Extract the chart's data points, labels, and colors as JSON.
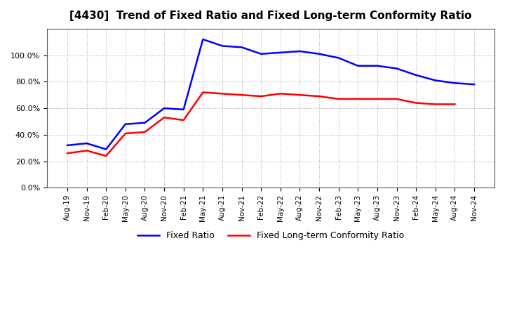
{
  "title": "[4430]  Trend of Fixed Ratio and Fixed Long-term Conformity Ratio",
  "x_labels": [
    "Aug-19",
    "Nov-19",
    "Feb-20",
    "May-20",
    "Aug-20",
    "Nov-20",
    "Feb-21",
    "May-21",
    "Aug-21",
    "Nov-21",
    "Feb-22",
    "May-22",
    "Aug-22",
    "Nov-22",
    "Feb-23",
    "May-23",
    "Aug-23",
    "Nov-23",
    "Feb-24",
    "May-24",
    "Aug-24",
    "Nov-24"
  ],
  "fixed_ratio": [
    0.32,
    0.335,
    0.29,
    0.48,
    0.49,
    0.6,
    0.59,
    1.12,
    1.07,
    1.06,
    1.01,
    1.02,
    1.03,
    1.01,
    0.98,
    0.92,
    0.92,
    0.9,
    0.85,
    0.81,
    0.79,
    0.78
  ],
  "fixed_lt_ratio": [
    0.26,
    0.28,
    0.24,
    0.41,
    0.42,
    0.53,
    0.51,
    0.72,
    0.71,
    0.7,
    0.69,
    0.71,
    0.7,
    0.69,
    0.67,
    0.67,
    0.67,
    0.67,
    0.64,
    0.63,
    0.63,
    null
  ],
  "fixed_ratio_color": "#0000FF",
  "fixed_lt_ratio_color": "#FF0000",
  "background_color": "#FFFFFF",
  "plot_bg_color": "#FFFFFF",
  "grid_color": "#AAAAAA",
  "ylim": [
    0.0,
    1.2
  ],
  "yticks": [
    0.0,
    0.2,
    0.4,
    0.6,
    0.8,
    1.0
  ],
  "legend_fixed_ratio": "Fixed Ratio",
  "legend_fixed_lt_ratio": "Fixed Long-term Conformity Ratio"
}
